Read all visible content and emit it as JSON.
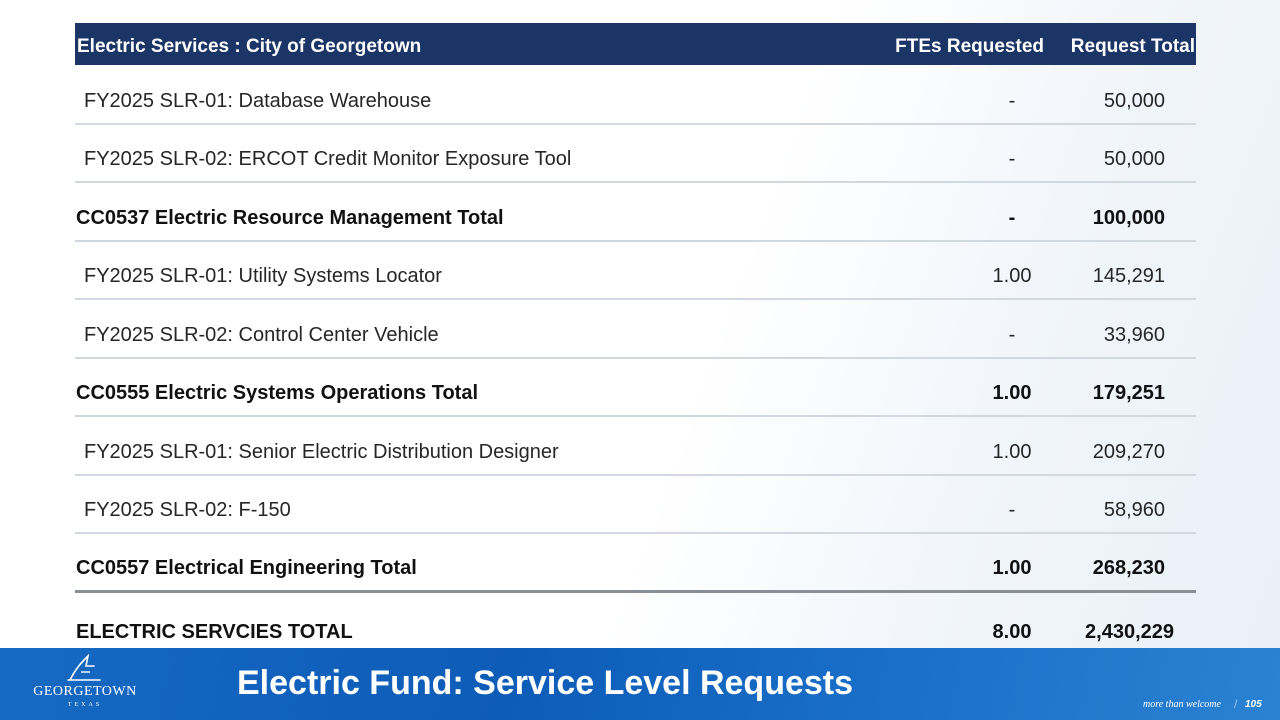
{
  "table": {
    "headers": {
      "name": "Electric Services : City of Georgetown",
      "fte": "FTEs Requested",
      "total": "Request Total"
    },
    "rows": [
      {
        "name": "FY2025 SLR-01: Database Warehouse",
        "fte": "-",
        "total": "50,000",
        "kind": "item"
      },
      {
        "name": "FY2025 SLR-02: ERCOT Credit Monitor Exposure Tool",
        "fte": "-",
        "total": "50,000",
        "kind": "item"
      },
      {
        "name": "CC0537 Electric Resource Management Total",
        "fte": "-",
        "total": "100,000",
        "kind": "subtotal"
      },
      {
        "name": "FY2025 SLR-01: Utility Systems Locator",
        "fte": "1.00",
        "total": "145,291",
        "kind": "item"
      },
      {
        "name": "FY2025 SLR-02: Control Center Vehicle",
        "fte": "-",
        "total": "33,960",
        "kind": "item"
      },
      {
        "name": "CC0555 Electric Systems Operations Total",
        "fte": "1.00",
        "total": "179,251",
        "kind": "subtotal"
      },
      {
        "name": "FY2025 SLR-01: Senior Electric Distribution Designer",
        "fte": "1.00",
        "total": "209,270",
        "kind": "item"
      },
      {
        "name": "FY2025 SLR-02: F-150",
        "fte": "-",
        "total": "58,960",
        "kind": "item"
      },
      {
        "name": "CC0557 Electrical Engineering Total",
        "fte": "1.00",
        "total": "268,230",
        "kind": "subtotal"
      },
      {
        "name": "ELECTRIC SERVCIES TOTAL",
        "fte": "8.00",
        "total": "2,430,229",
        "kind": "grand"
      }
    ]
  },
  "footer": {
    "title": "Electric Fund: Service Level Requests",
    "logo_name": "GEORGETOWN",
    "logo_sub": "TEXAS",
    "tagline": "more than welcome",
    "page_number": "105"
  },
  "colors": {
    "header_bg": "#1b3566",
    "footer_bg": "#0d5cb8"
  }
}
